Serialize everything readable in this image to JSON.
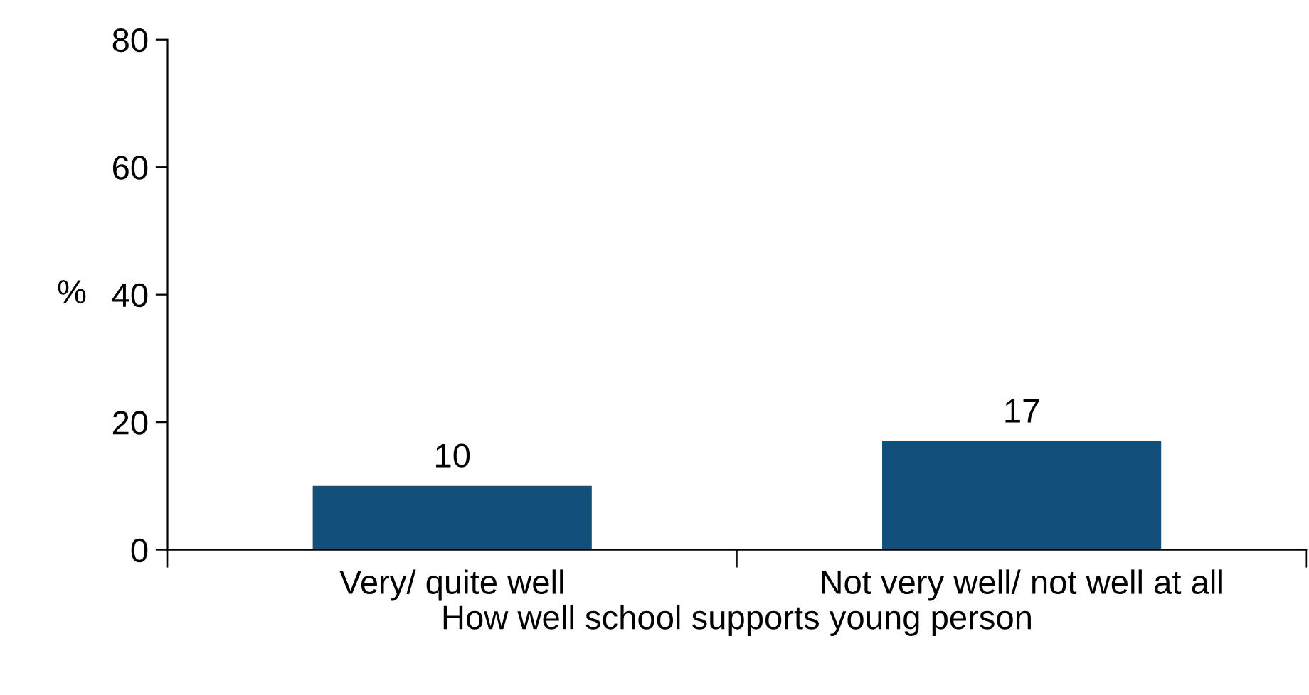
{
  "chart_data": {
    "type": "bar",
    "xlabel": "How well school supports young person",
    "ylabel": "%",
    "categories": [
      "Very/ quite well",
      "Not very well/ not well at all"
    ],
    "values": [
      10,
      17
    ],
    "color": "#12507a",
    "ylim": [
      0,
      80
    ],
    "yticks": [
      0,
      20,
      40,
      60,
      80
    ],
    "grid": false,
    "data_labels": true
  }
}
